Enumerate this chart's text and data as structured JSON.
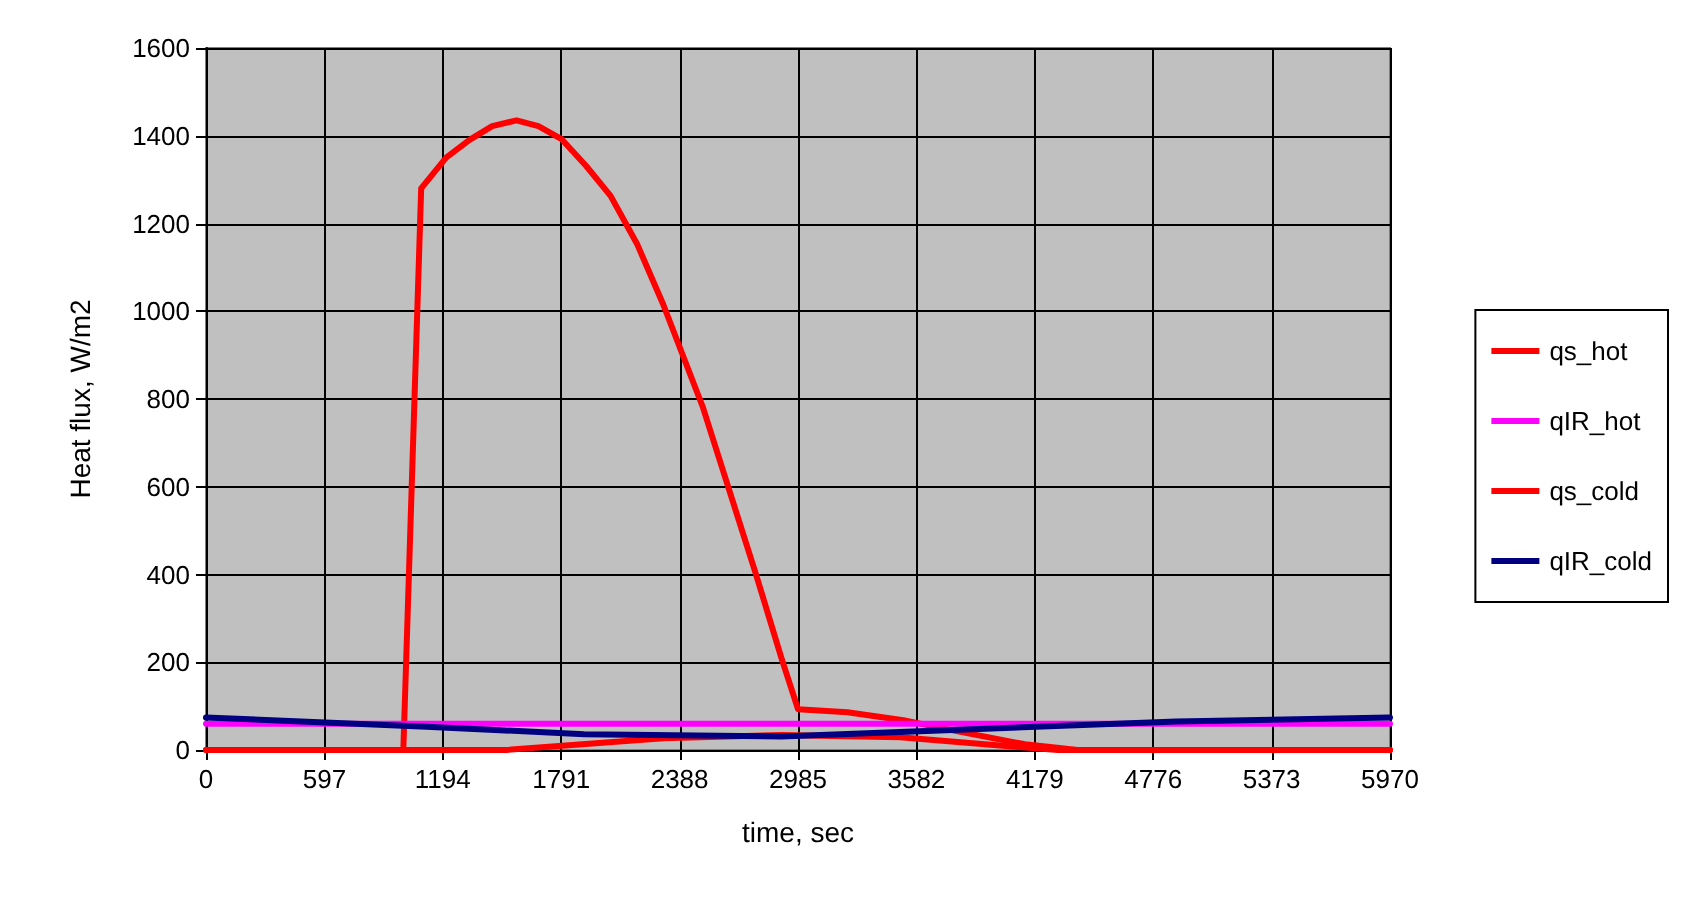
{
  "chart_data": {
    "type": "line",
    "xlabel": "time, sec",
    "ylabel": "Heat flux, W/m2",
    "xlim": [
      0,
      5970
    ],
    "xticks": [
      0,
      597,
      1194,
      1791,
      2388,
      2985,
      3582,
      4179,
      4776,
      5373,
      5970
    ],
    "ylim": [
      0,
      1600
    ],
    "yticks": [
      0,
      200,
      400,
      600,
      800,
      1000,
      1200,
      1400,
      1600
    ],
    "grid": true,
    "legend": "right",
    "marker": "none",
    "line_style": "solid",
    "series": [
      {
        "name": "qs_hot",
        "color": "#ff0000",
        "x": [
          0,
          995,
          1085,
          1211,
          1327,
          1443,
          1566,
          1676,
          1791,
          1917,
          2040,
          2173,
          2305,
          2504,
          2637,
          2770,
          2902,
          2985,
          3234,
          3516,
          3798,
          4129,
          4395,
          5970
        ],
        "values": [
          0,
          0,
          1280,
          1350,
          1390,
          1422,
          1435,
          1422,
          1393,
          1331,
          1263,
          1154,
          1016,
          783,
          594,
          405,
          209,
          93,
          86,
          68,
          42,
          13,
          0,
          0
        ]
      },
      {
        "name": "qIR_hot",
        "color": "#ff00ff",
        "x": [
          0,
          5970
        ],
        "values": [
          60,
          60
        ]
      },
      {
        "name": "qs_cold",
        "color": "#ff0000",
        "x": [
          0,
          1512,
          2306,
          2902,
          3500,
          3897,
          4295,
          5970
        ],
        "values": [
          0,
          0,
          27,
          34,
          29,
          14,
          0,
          0
        ]
      },
      {
        "name": "qIR_cold",
        "color": "#000080",
        "x": [
          0,
          1112,
          1907,
          2902,
          3897,
          4892,
          5970
        ],
        "values": [
          74,
          53,
          36,
          31,
          48,
          65,
          74
        ]
      }
    ]
  }
}
